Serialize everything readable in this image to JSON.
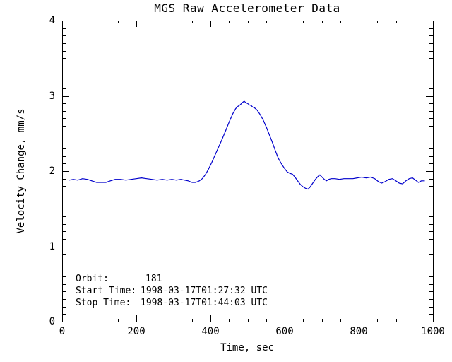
{
  "window": {
    "background": "#ffffff",
    "foreground": "#000000"
  },
  "annotations": {
    "rows": [
      {
        "label": "Orbit:",
        "value": "181"
      },
      {
        "label": "Start Time:",
        "value": "1998-03-17T01:27:32 UTC"
      },
      {
        "label": "Stop Time:",
        "value": "1998-03-17T01:44:03 UTC"
      }
    ]
  },
  "chart_data": {
    "type": "line",
    "title": "MGS Raw Accelerometer Data",
    "xlabel": "Time, sec",
    "ylabel": "Velocity Change, mm/s",
    "xlim": [
      0,
      1000
    ],
    "ylim": [
      0,
      4
    ],
    "grid": false,
    "legend": "none",
    "axis_color": "#000000",
    "line_color": "#0000cc",
    "x_major_ticks": [
      0,
      200,
      400,
      600,
      800,
      1000
    ],
    "x_tick_labels": [
      "0",
      "200",
      "400",
      "600",
      "800",
      "1000"
    ],
    "x_minor_step": 50,
    "y_major_ticks": [
      0,
      1,
      2,
      3,
      4
    ],
    "y_tick_labels": [
      "0",
      "1",
      "2",
      "3",
      "4"
    ],
    "y_minor_step": 0.1,
    "series": [
      {
        "name": "velocity-change",
        "points": [
          [
            19,
            1.88
          ],
          [
            30,
            1.89
          ],
          [
            42,
            1.88
          ],
          [
            55,
            1.9
          ],
          [
            68,
            1.89
          ],
          [
            80,
            1.87
          ],
          [
            93,
            1.85
          ],
          [
            105,
            1.85
          ],
          [
            118,
            1.85
          ],
          [
            130,
            1.87
          ],
          [
            143,
            1.89
          ],
          [
            158,
            1.89
          ],
          [
            172,
            1.88
          ],
          [
            186,
            1.89
          ],
          [
            200,
            1.9
          ],
          [
            214,
            1.91
          ],
          [
            228,
            1.9
          ],
          [
            242,
            1.89
          ],
          [
            256,
            1.88
          ],
          [
            270,
            1.89
          ],
          [
            283,
            1.88
          ],
          [
            296,
            1.89
          ],
          [
            308,
            1.88
          ],
          [
            320,
            1.89
          ],
          [
            330,
            1.88
          ],
          [
            340,
            1.87
          ],
          [
            350,
            1.85
          ],
          [
            360,
            1.85
          ],
          [
            370,
            1.87
          ],
          [
            378,
            1.9
          ],
          [
            386,
            1.95
          ],
          [
            394,
            2.02
          ],
          [
            404,
            2.12
          ],
          [
            413,
            2.22
          ],
          [
            422,
            2.32
          ],
          [
            432,
            2.43
          ],
          [
            442,
            2.55
          ],
          [
            451,
            2.66
          ],
          [
            460,
            2.76
          ],
          [
            468,
            2.83
          ],
          [
            474,
            2.86
          ],
          [
            480,
            2.88
          ],
          [
            486,
            2.91
          ],
          [
            491,
            2.93
          ],
          [
            495,
            2.91
          ],
          [
            500,
            2.9
          ],
          [
            505,
            2.88
          ],
          [
            510,
            2.87
          ],
          [
            514,
            2.85
          ],
          [
            519,
            2.84
          ],
          [
            526,
            2.81
          ],
          [
            534,
            2.75
          ],
          [
            542,
            2.68
          ],
          [
            551,
            2.58
          ],
          [
            559,
            2.48
          ],
          [
            567,
            2.38
          ],
          [
            575,
            2.27
          ],
          [
            583,
            2.17
          ],
          [
            591,
            2.1
          ],
          [
            599,
            2.04
          ],
          [
            607,
            1.99
          ],
          [
            614,
            1.97
          ],
          [
            621,
            1.96
          ],
          [
            628,
            1.92
          ],
          [
            635,
            1.87
          ],
          [
            643,
            1.82
          ],
          [
            650,
            1.79
          ],
          [
            657,
            1.77
          ],
          [
            663,
            1.76
          ],
          [
            669,
            1.79
          ],
          [
            676,
            1.84
          ],
          [
            683,
            1.89
          ],
          [
            690,
            1.93
          ],
          [
            695,
            1.95
          ],
          [
            701,
            1.92
          ],
          [
            707,
            1.89
          ],
          [
            713,
            1.87
          ],
          [
            719,
            1.89
          ],
          [
            726,
            1.9
          ],
          [
            736,
            1.9
          ],
          [
            748,
            1.89
          ],
          [
            760,
            1.9
          ],
          [
            772,
            1.9
          ],
          [
            784,
            1.9
          ],
          [
            796,
            1.91
          ],
          [
            808,
            1.92
          ],
          [
            820,
            1.91
          ],
          [
            832,
            1.92
          ],
          [
            843,
            1.9
          ],
          [
            853,
            1.86
          ],
          [
            862,
            1.84
          ],
          [
            871,
            1.86
          ],
          [
            881,
            1.89
          ],
          [
            891,
            1.9
          ],
          [
            900,
            1.87
          ],
          [
            909,
            1.84
          ],
          [
            918,
            1.83
          ],
          [
            927,
            1.87
          ],
          [
            936,
            1.9
          ],
          [
            945,
            1.91
          ],
          [
            953,
            1.88
          ],
          [
            961,
            1.85
          ],
          [
            969,
            1.87
          ],
          [
            978,
            1.87
          ]
        ]
      }
    ]
  }
}
